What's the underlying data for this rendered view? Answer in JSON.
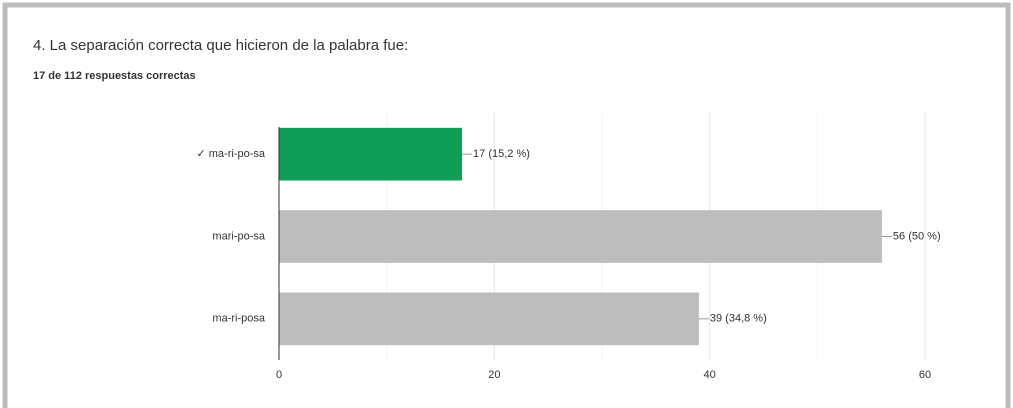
{
  "chart_data": {
    "type": "bar",
    "orientation": "horizontal",
    "title": "4. La separación correcta que hicieron de la palabra fue:",
    "subtitle": "17 de 112 respuestas correctas",
    "categories": [
      "✓ ma-ri-po-sa",
      "mari-po-sa",
      "ma-ri-posa"
    ],
    "values": [
      17,
      56,
      39
    ],
    "value_labels": [
      "17 (15,2 %)",
      "56 (50 %)",
      "39 (34,8 %)"
    ],
    "colors": [
      "#0f9d58",
      "#bdbdbd",
      "#bdbdbd"
    ],
    "xlim": [
      0,
      60
    ],
    "xticks": [
      0,
      20,
      40,
      60
    ],
    "minor_xticks": [
      10,
      30,
      50
    ],
    "grid": true
  }
}
